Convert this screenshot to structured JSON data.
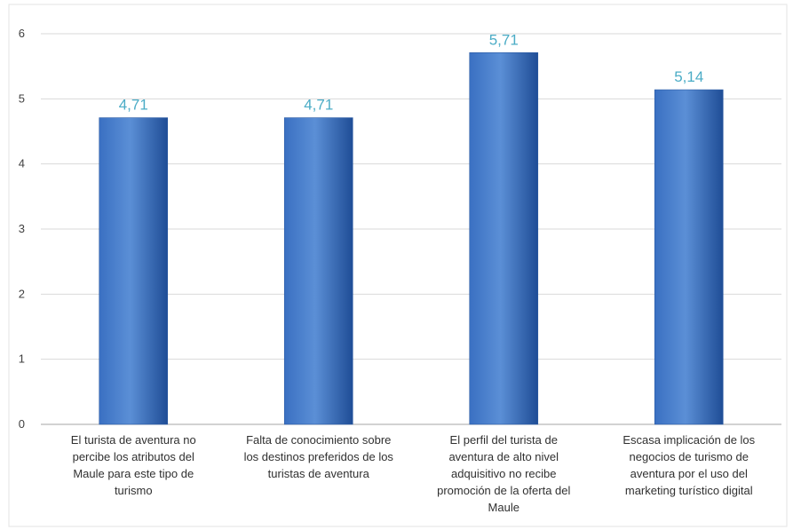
{
  "chart_data": {
    "type": "bar",
    "categories": [
      "El turista de aventura no percibe los atributos del Maule para este tipo de turismo",
      "Falta de conocimiento sobre los destinos preferidos de los turistas de aventura",
      "El perfil del turista de aventura de alto nivel adquisitivo no recibe promoción de la oferta del Maule",
      "Escasa implicación de los negocios de turismo de aventura por el uso del marketing turístico digital"
    ],
    "category_lines": [
      [
        "El turista de aventura no",
        "percibe los atributos del",
        "Maule para este tipo de",
        "turismo"
      ],
      [
        "Falta de conocimiento sobre",
        "los destinos preferidos de los",
        "turistas de aventura"
      ],
      [
        "El perfil del turista de",
        "aventura de alto nivel",
        "adquisitivo no recibe",
        "promoción de la oferta del",
        "Maule"
      ],
      [
        "Escasa implicación de los",
        "negocios de turismo de",
        "aventura por el uso del",
        "marketing turístico digital"
      ]
    ],
    "values": [
      4.71,
      4.71,
      5.71,
      5.14
    ],
    "data_labels": [
      "4,71",
      "4,71",
      "5,71",
      "5,14"
    ],
    "yticks": [
      "0",
      "1",
      "2",
      "3",
      "4",
      "5",
      "6"
    ],
    "ylim": [
      0,
      6
    ],
    "grid": true,
    "legend": "none",
    "colors": {
      "bar_light": "#5b8fd6",
      "bar_mid": "#3a70c2",
      "bar_dark": "#1f4d96",
      "data_label": "#4bacc6",
      "grid": "#d9d9d9",
      "axis": "#a6a6a6"
    }
  }
}
